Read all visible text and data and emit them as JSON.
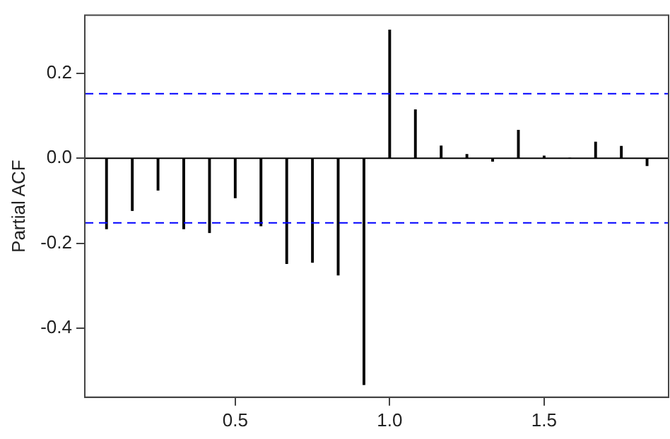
{
  "chart_data": {
    "type": "bar",
    "ylabel": "Partial ACF",
    "x": [
      0.0833,
      0.1667,
      0.25,
      0.3333,
      0.4167,
      0.5,
      0.5833,
      0.6667,
      0.75,
      0.8333,
      0.9167,
      1.0,
      1.0833,
      1.1667,
      1.25,
      1.3333,
      1.4167,
      1.5,
      1.5833,
      1.6667,
      1.75,
      1.8333
    ],
    "values": [
      -0.166,
      -0.123,
      -0.075,
      -0.166,
      -0.175,
      -0.093,
      -0.159,
      -0.248,
      -0.245,
      -0.275,
      -0.533,
      0.302,
      0.114,
      0.029,
      0.009,
      -0.007,
      0.066,
      0.005,
      0,
      0.038,
      0.028,
      -0.017
    ],
    "color": "#000000",
    "xlim": [
      0.013,
      1.903
    ],
    "xticks": [
      0.5,
      {
        "value": 1,
        "label": "1.0"
      },
      1.5
    ],
    "ylim": [
      -0.563,
      0.337
    ],
    "yticks": [
      -0.4,
      -0.2,
      {
        "value": 0,
        "label": "0.0"
      },
      0.2
    ],
    "ref_lines": [
      {
        "axis": "y",
        "value": 0,
        "color": "#000000",
        "line_style": "solid"
      },
      {
        "axis": "y",
        "value": 0.152,
        "color": "#0000ff",
        "line_style": "dashed"
      },
      {
        "axis": "y",
        "value": -0.152,
        "color": "#0000ff",
        "line_style": "dashed"
      }
    ],
    "grid": false,
    "legend": false
  }
}
